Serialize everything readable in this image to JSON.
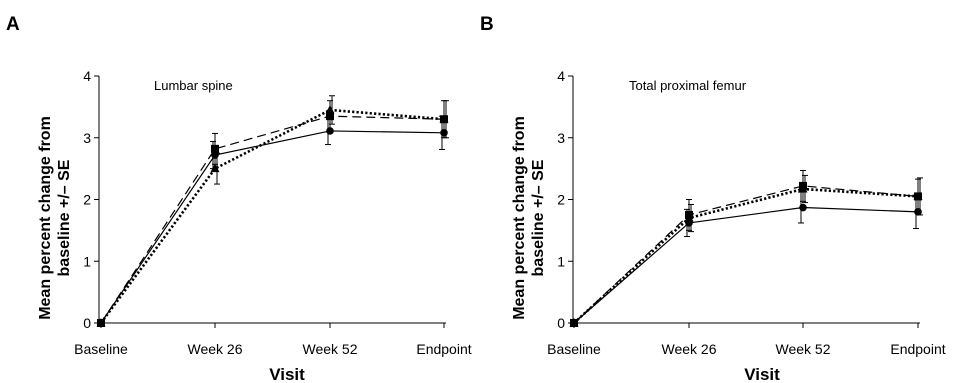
{
  "chart_data": [
    {
      "type": "line",
      "panel": "A",
      "title": "Lumbar spine",
      "xlabel": "Visit",
      "ylabel": [
        "Mean percent change from",
        "baseline +/– SE"
      ],
      "categories": [
        "Baseline",
        "Week 26",
        "Week 52",
        "Endpoint"
      ],
      "ylim": [
        0,
        4
      ],
      "yticks": [
        0,
        1,
        2,
        3,
        4
      ],
      "series": [
        {
          "style": "solid",
          "marker": "circle",
          "values": [
            0,
            2.72,
            3.11,
            3.08
          ],
          "err": [
            0,
            0.22,
            0.22,
            0.27
          ]
        },
        {
          "style": "dashed",
          "marker": "square",
          "values": [
            0,
            2.82,
            3.35,
            3.3
          ],
          "err": [
            0,
            0.25,
            0.25,
            0.3
          ]
        },
        {
          "style": "dotted",
          "marker": "triangle",
          "values": [
            0,
            2.5,
            3.45,
            3.3
          ],
          "err": [
            0,
            0.25,
            0.23,
            0.3
          ]
        }
      ]
    },
    {
      "type": "line",
      "panel": "B",
      "title": "Total proximal femur",
      "xlabel": "Visit",
      "ylabel": [
        "Mean percent change from",
        "baseline +/– SE"
      ],
      "categories": [
        "Baseline",
        "Week 26",
        "Week 52",
        "Endpoint"
      ],
      "ylim": [
        0,
        4
      ],
      "yticks": [
        0,
        1,
        2,
        3,
        4
      ],
      "series": [
        {
          "style": "solid",
          "marker": "circle",
          "values": [
            0,
            1.62,
            1.87,
            1.8
          ],
          "err": [
            0,
            0.22,
            0.25,
            0.27
          ]
        },
        {
          "style": "dashed",
          "marker": "square",
          "values": [
            0,
            1.75,
            2.22,
            2.05
          ],
          "err": [
            0,
            0.25,
            0.25,
            0.28
          ]
        },
        {
          "style": "dotted",
          "marker": "triangle",
          "values": [
            0,
            1.7,
            2.17,
            2.05
          ],
          "err": [
            0,
            0.22,
            0.22,
            0.3
          ]
        }
      ]
    }
  ]
}
